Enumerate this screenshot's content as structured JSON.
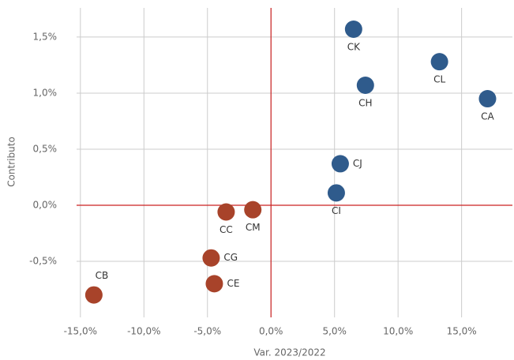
{
  "chart_data": {
    "type": "scatter",
    "xlabel": "Var. 2023/2022",
    "ylabel": "Contributo",
    "xlim": [
      -15.3,
      19
    ],
    "ylim": [
      -1.0,
      1.76
    ],
    "xticks": [
      {
        "value": -15,
        "label": "-15,0%"
      },
      {
        "value": -10,
        "label": "-10,0%"
      },
      {
        "value": -5,
        "label": "-5,0%"
      },
      {
        "value": 0,
        "label": "0,0%"
      },
      {
        "value": 5,
        "label": "5,0%"
      },
      {
        "value": 10,
        "label": "10,0%"
      },
      {
        "value": 15,
        "label": "15,0%"
      }
    ],
    "yticks": [
      {
        "value": -0.5,
        "label": "-0,5%"
      },
      {
        "value": 0,
        "label": "0,0%"
      },
      {
        "value": 0.5,
        "label": "0,5%"
      },
      {
        "value": 1.0,
        "label": "1,0%"
      },
      {
        "value": 1.5,
        "label": "1,5%"
      }
    ],
    "grid": true,
    "zero_line_color": "#cc2222",
    "series": [
      {
        "color": "#2f5b8c",
        "labels": [
          "CK",
          "CL",
          "CH",
          "CA",
          "CJ",
          "CI"
        ],
        "x": [
          6.5,
          13.26,
          7.43,
          17.04,
          5.45,
          5.14
        ],
        "values": [
          1.57,
          1.28,
          1.07,
          0.95,
          0.37,
          0.11
        ]
      },
      {
        "color": "#a8432a",
        "labels": [
          "CC",
          "CM",
          "CG",
          "CE",
          "CB"
        ],
        "x": [
          -3.53,
          -1.43,
          -4.71,
          -4.46,
          -13.94
        ],
        "values": [
          -0.06,
          -0.04,
          -0.47,
          -0.7,
          -0.8
        ]
      }
    ]
  }
}
